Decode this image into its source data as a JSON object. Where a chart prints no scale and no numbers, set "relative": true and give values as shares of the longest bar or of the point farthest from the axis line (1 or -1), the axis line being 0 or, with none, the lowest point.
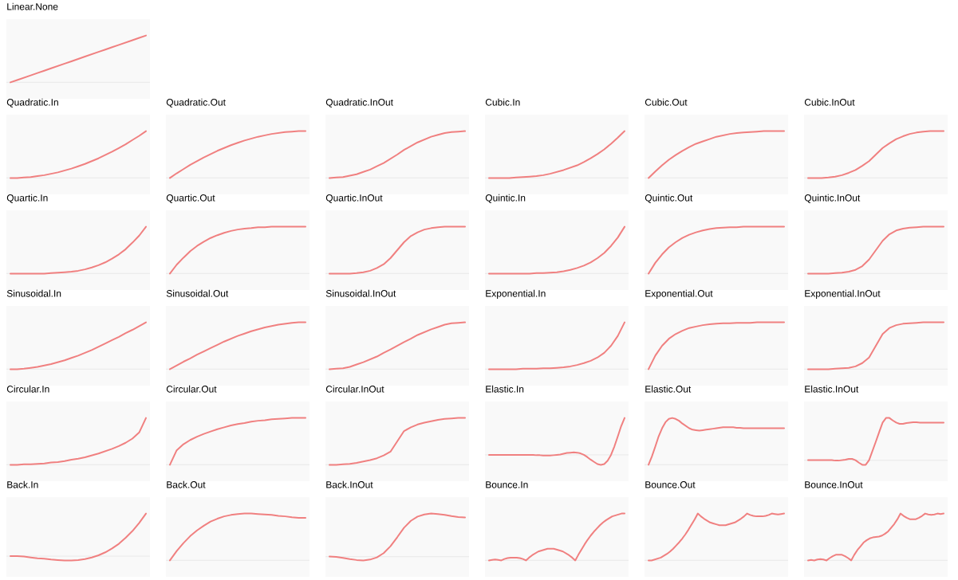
{
  "chart_data": [
    {
      "type": "line",
      "title": "Linear.None",
      "color": "#f08080",
      "relative": true,
      "categories": [
        null,
        null,
        null,
        null,
        null,
        null,
        null,
        null,
        null,
        null,
        null,
        null,
        null,
        null,
        null,
        null,
        null,
        null,
        null,
        null,
        null
      ],
      "values": [
        0,
        0.05,
        0.1,
        0.15,
        0.2,
        0.25,
        0.3,
        0.35,
        0.4,
        0.45,
        0.5,
        0.55,
        0.6,
        0.65,
        0.7,
        0.75,
        0.8,
        0.85,
        0.9,
        0.95,
        1
      ]
    },
    {
      "type": "line",
      "title": "Quadratic.In",
      "color": "#f08080",
      "relative": true,
      "categories": [
        null,
        null,
        null,
        null,
        null,
        null,
        null,
        null,
        null,
        null,
        null,
        null,
        null,
        null,
        null,
        null,
        null,
        null,
        null,
        null,
        null
      ],
      "values": [
        0,
        0,
        0.01,
        0.02,
        0.04,
        0.06,
        0.09,
        0.12,
        0.16,
        0.2,
        0.25,
        0.3,
        0.36,
        0.42,
        0.49,
        0.56,
        0.64,
        0.72,
        0.81,
        0.9,
        1
      ]
    },
    {
      "type": "line",
      "title": "Quadratic.Out",
      "color": "#f08080",
      "relative": true,
      "categories": [
        null,
        null,
        null,
        null,
        null,
        null,
        null,
        null,
        null,
        null,
        null,
        null,
        null,
        null,
        null,
        null,
        null,
        null,
        null,
        null,
        null
      ],
      "values": [
        0,
        0.1,
        0.19,
        0.28,
        0.36,
        0.44,
        0.51,
        0.58,
        0.64,
        0.7,
        0.75,
        0.8,
        0.84,
        0.88,
        0.91,
        0.94,
        0.96,
        0.98,
        0.99,
        1,
        1
      ]
    },
    {
      "type": "line",
      "title": "Quadratic.InOut",
      "color": "#f08080",
      "relative": true,
      "categories": [
        null,
        null,
        null,
        null,
        null,
        null,
        null,
        null,
        null,
        null,
        null,
        null,
        null,
        null,
        null,
        null,
        null,
        null,
        null,
        null,
        null
      ],
      "values": [
        0,
        0.01,
        0.02,
        0.05,
        0.08,
        0.13,
        0.18,
        0.25,
        0.32,
        0.41,
        0.5,
        0.6,
        0.68,
        0.76,
        0.82,
        0.88,
        0.92,
        0.96,
        0.98,
        0.99,
        1
      ]
    },
    {
      "type": "line",
      "title": "Cubic.In",
      "color": "#f08080",
      "relative": true,
      "categories": [
        null,
        null,
        null,
        null,
        null,
        null,
        null,
        null,
        null,
        null,
        null,
        null,
        null,
        null,
        null,
        null,
        null,
        null,
        null,
        null,
        null
      ],
      "values": [
        0,
        0,
        0,
        0,
        0.01,
        0.02,
        0.03,
        0.04,
        0.06,
        0.09,
        0.13,
        0.17,
        0.22,
        0.27,
        0.34,
        0.42,
        0.51,
        0.61,
        0.73,
        0.86,
        1
      ]
    },
    {
      "type": "line",
      "title": "Cubic.Out",
      "color": "#f08080",
      "relative": true,
      "categories": [
        null,
        null,
        null,
        null,
        null,
        null,
        null,
        null,
        null,
        null,
        null,
        null,
        null,
        null,
        null,
        null,
        null,
        null,
        null,
        null,
        null
      ],
      "values": [
        0,
        0.14,
        0.27,
        0.39,
        0.49,
        0.58,
        0.66,
        0.73,
        0.78,
        0.83,
        0.88,
        0.91,
        0.94,
        0.96,
        0.97,
        0.98,
        0.99,
        1,
        1,
        1,
        1
      ]
    },
    {
      "type": "line",
      "title": "Cubic.InOut",
      "color": "#f08080",
      "relative": true,
      "categories": [
        null,
        null,
        null,
        null,
        null,
        null,
        null,
        null,
        null,
        null,
        null,
        null,
        null,
        null,
        null,
        null,
        null,
        null,
        null,
        null,
        null
      ],
      "values": [
        0,
        0,
        0,
        0.01,
        0.03,
        0.06,
        0.11,
        0.17,
        0.26,
        0.36,
        0.5,
        0.64,
        0.74,
        0.83,
        0.89,
        0.94,
        0.97,
        0.99,
        1,
        1,
        1
      ]
    },
    {
      "type": "line",
      "title": "Quartic.In",
      "color": "#f08080",
      "relative": true,
      "categories": [
        null,
        null,
        null,
        null,
        null,
        null,
        null,
        null,
        null,
        null,
        null,
        null,
        null,
        null,
        null,
        null,
        null,
        null,
        null,
        null,
        null
      ],
      "values": [
        0,
        0,
        0,
        0,
        0,
        0,
        0.01,
        0.02,
        0.03,
        0.04,
        0.06,
        0.09,
        0.13,
        0.18,
        0.24,
        0.32,
        0.41,
        0.52,
        0.66,
        0.81,
        1
      ]
    },
    {
      "type": "line",
      "title": "Quartic.Out",
      "color": "#f08080",
      "relative": true,
      "categories": [
        null,
        null,
        null,
        null,
        null,
        null,
        null,
        null,
        null,
        null,
        null,
        null,
        null,
        null,
        null,
        null,
        null,
        null,
        null,
        null,
        null
      ],
      "values": [
        0,
        0.19,
        0.34,
        0.48,
        0.59,
        0.68,
        0.76,
        0.82,
        0.87,
        0.91,
        0.94,
        0.96,
        0.97,
        0.99,
        0.99,
        1,
        1,
        1,
        1,
        1,
        1
      ]
    },
    {
      "type": "line",
      "title": "Quartic.InOut",
      "color": "#f08080",
      "relative": true,
      "categories": [
        null,
        null,
        null,
        null,
        null,
        null,
        null,
        null,
        null,
        null,
        null,
        null,
        null,
        null,
        null,
        null,
        null,
        null,
        null,
        null,
        null
      ],
      "values": [
        0,
        0,
        0,
        0,
        0.01,
        0.03,
        0.06,
        0.12,
        0.2,
        0.33,
        0.5,
        0.67,
        0.8,
        0.88,
        0.94,
        0.97,
        0.99,
        1,
        1,
        1,
        1
      ]
    },
    {
      "type": "line",
      "title": "Quintic.In",
      "color": "#f08080",
      "relative": true,
      "categories": [
        null,
        null,
        null,
        null,
        null,
        null,
        null,
        null,
        null,
        null,
        null,
        null,
        null,
        null,
        null,
        null,
        null,
        null,
        null,
        null,
        null
      ],
      "values": [
        0,
        0,
        0,
        0,
        0,
        0,
        0,
        0.01,
        0.01,
        0.02,
        0.03,
        0.05,
        0.08,
        0.12,
        0.17,
        0.24,
        0.33,
        0.44,
        0.59,
        0.77,
        1
      ]
    },
    {
      "type": "line",
      "title": "Quintic.Out",
      "color": "#f08080",
      "relative": true,
      "categories": [
        null,
        null,
        null,
        null,
        null,
        null,
        null,
        null,
        null,
        null,
        null,
        null,
        null,
        null,
        null,
        null,
        null,
        null,
        null,
        null,
        null
      ],
      "values": [
        0,
        0.23,
        0.41,
        0.56,
        0.67,
        0.76,
        0.83,
        0.88,
        0.92,
        0.95,
        0.97,
        0.98,
        0.99,
        0.99,
        1,
        1,
        1,
        1,
        1,
        1,
        1
      ]
    },
    {
      "type": "line",
      "title": "Quintic.InOut",
      "color": "#f08080",
      "relative": true,
      "categories": [
        null,
        null,
        null,
        null,
        null,
        null,
        null,
        null,
        null,
        null,
        null,
        null,
        null,
        null,
        null,
        null,
        null,
        null,
        null,
        null,
        null
      ],
      "values": [
        0,
        0,
        0,
        0,
        0.01,
        0.02,
        0.04,
        0.08,
        0.16,
        0.3,
        0.5,
        0.7,
        0.84,
        0.92,
        0.96,
        0.98,
        0.99,
        1,
        1,
        1,
        1
      ]
    },
    {
      "type": "line",
      "title": "Sinusoidal.In",
      "color": "#f08080",
      "relative": true,
      "categories": [
        null,
        null,
        null,
        null,
        null,
        null,
        null,
        null,
        null,
        null,
        null,
        null,
        null,
        null,
        null,
        null,
        null,
        null,
        null,
        null,
        null
      ],
      "values": [
        0,
        0,
        0.01,
        0.03,
        0.05,
        0.08,
        0.11,
        0.15,
        0.19,
        0.24,
        0.29,
        0.35,
        0.41,
        0.48,
        0.55,
        0.62,
        0.69,
        0.77,
        0.84,
        0.92,
        1
      ]
    },
    {
      "type": "line",
      "title": "Sinusoidal.Out",
      "color": "#f08080",
      "relative": true,
      "categories": [
        null,
        null,
        null,
        null,
        null,
        null,
        null,
        null,
        null,
        null,
        null,
        null,
        null,
        null,
        null,
        null,
        null,
        null,
        null,
        null,
        null
      ],
      "values": [
        0,
        0.08,
        0.16,
        0.23,
        0.31,
        0.38,
        0.45,
        0.52,
        0.59,
        0.65,
        0.71,
        0.76,
        0.81,
        0.85,
        0.89,
        0.92,
        0.95,
        0.97,
        0.99,
        1,
        1
      ]
    },
    {
      "type": "line",
      "title": "Sinusoidal.InOut",
      "color": "#f08080",
      "relative": true,
      "categories": [
        null,
        null,
        null,
        null,
        null,
        null,
        null,
        null,
        null,
        null,
        null,
        null,
        null,
        null,
        null,
        null,
        null,
        null,
        null,
        null,
        null
      ],
      "values": [
        0,
        0.01,
        0.02,
        0.05,
        0.1,
        0.15,
        0.21,
        0.27,
        0.35,
        0.42,
        0.5,
        0.58,
        0.65,
        0.73,
        0.79,
        0.85,
        0.9,
        0.95,
        0.98,
        0.99,
        1
      ]
    },
    {
      "type": "line",
      "title": "Exponential.In",
      "color": "#f08080",
      "relative": true,
      "categories": [
        null,
        null,
        null,
        null,
        null,
        null,
        null,
        null,
        null,
        null,
        null,
        null,
        null,
        null,
        null,
        null,
        null,
        null,
        null,
        null,
        null
      ],
      "values": [
        0,
        0,
        0,
        0,
        0,
        0.01,
        0.01,
        0.01,
        0.02,
        0.02,
        0.03,
        0.04,
        0.06,
        0.09,
        0.13,
        0.18,
        0.25,
        0.35,
        0.5,
        0.71,
        1
      ]
    },
    {
      "type": "line",
      "title": "Exponential.Out",
      "color": "#f08080",
      "relative": true,
      "categories": [
        null,
        null,
        null,
        null,
        null,
        null,
        null,
        null,
        null,
        null,
        null,
        null,
        null,
        null,
        null,
        null,
        null,
        null,
        null,
        null,
        null
      ],
      "values": [
        0,
        0.29,
        0.5,
        0.65,
        0.75,
        0.82,
        0.88,
        0.91,
        0.94,
        0.96,
        0.97,
        0.98,
        0.98,
        0.99,
        0.99,
        0.99,
        1,
        1,
        1,
        1,
        1
      ]
    },
    {
      "type": "line",
      "title": "Exponential.InOut",
      "color": "#f08080",
      "relative": true,
      "categories": [
        null,
        null,
        null,
        null,
        null,
        null,
        null,
        null,
        null,
        null,
        null,
        null,
        null,
        null,
        null,
        null,
        null,
        null,
        null,
        null,
        null
      ],
      "values": [
        0,
        0,
        0,
        0,
        0.01,
        0.02,
        0.03,
        0.06,
        0.13,
        0.25,
        0.5,
        0.75,
        0.88,
        0.94,
        0.97,
        0.98,
        0.99,
        1,
        1,
        1,
        1
      ]
    },
    {
      "type": "line",
      "title": "Circular.In",
      "color": "#f08080",
      "relative": true,
      "categories": [
        null,
        null,
        null,
        null,
        null,
        null,
        null,
        null,
        null,
        null,
        null,
        null,
        null,
        null,
        null,
        null,
        null,
        null,
        null,
        null,
        null
      ],
      "values": [
        0,
        0,
        0.01,
        0.01,
        0.02,
        0.03,
        0.05,
        0.06,
        0.08,
        0.11,
        0.13,
        0.16,
        0.2,
        0.24,
        0.29,
        0.34,
        0.4,
        0.47,
        0.56,
        0.69,
        1
      ]
    },
    {
      "type": "line",
      "title": "Circular.Out",
      "color": "#f08080",
      "relative": true,
      "categories": [
        null,
        null,
        null,
        null,
        null,
        null,
        null,
        null,
        null,
        null,
        null,
        null,
        null,
        null,
        null,
        null,
        null,
        null,
        null,
        null,
        null
      ],
      "values": [
        0,
        0.31,
        0.44,
        0.53,
        0.6,
        0.66,
        0.71,
        0.76,
        0.8,
        0.84,
        0.87,
        0.89,
        0.92,
        0.94,
        0.95,
        0.97,
        0.98,
        0.99,
        1,
        1,
        1
      ]
    },
    {
      "type": "line",
      "title": "Circular.InOut",
      "color": "#f08080",
      "relative": true,
      "categories": [
        null,
        null,
        null,
        null,
        null,
        null,
        null,
        null,
        null,
        null,
        null,
        null,
        null,
        null,
        null,
        null,
        null,
        null,
        null,
        null,
        null
      ],
      "values": [
        0,
        0,
        0.01,
        0.02,
        0.04,
        0.07,
        0.1,
        0.14,
        0.2,
        0.28,
        0.5,
        0.72,
        0.8,
        0.86,
        0.9,
        0.93,
        0.96,
        0.98,
        0.99,
        1,
        1
      ]
    },
    {
      "type": "line",
      "title": "Elastic.In",
      "color": "#f08080",
      "relative": true,
      "categories": [
        null,
        null,
        null,
        null,
        null,
        null,
        null,
        null,
        null,
        null,
        null,
        null,
        null,
        null,
        null,
        null,
        null,
        null,
        null,
        null,
        null,
        null,
        null,
        null,
        null,
        null,
        null,
        null,
        null,
        null,
        null,
        null,
        null,
        null,
        null,
        null,
        null,
        null,
        null,
        null,
        null
      ],
      "values": [
        0,
        0,
        0,
        0,
        0,
        0,
        0,
        0,
        0,
        0,
        0,
        0,
        0,
        0,
        -0.01,
        -0.01,
        -0.02,
        -0.02,
        -0.02,
        -0.01,
        0,
        0.01,
        0.03,
        0.05,
        0.06,
        0.07,
        0.06,
        0.04,
        0,
        -0.06,
        -0.13,
        -0.19,
        -0.25,
        -0.27,
        -0.25,
        -0.16,
        0,
        0.23,
        0.5,
        0.78,
        1
      ]
    },
    {
      "type": "line",
      "title": "Elastic.Out",
      "color": "#f08080",
      "relative": true,
      "categories": [
        null,
        null,
        null,
        null,
        null,
        null,
        null,
        null,
        null,
        null,
        null,
        null,
        null,
        null,
        null,
        null,
        null,
        null,
        null,
        null,
        null,
        null,
        null,
        null,
        null,
        null,
        null,
        null,
        null,
        null,
        null,
        null,
        null,
        null,
        null,
        null,
        null,
        null,
        null,
        null,
        null
      ],
      "values": [
        0,
        0.18,
        0.39,
        0.61,
        0.78,
        0.91,
        0.98,
        1,
        0.98,
        0.94,
        0.88,
        0.83,
        0.78,
        0.75,
        0.74,
        0.73,
        0.74,
        0.75,
        0.76,
        0.77,
        0.78,
        0.79,
        0.8,
        0.8,
        0.8,
        0.8,
        0.79,
        0.79,
        0.78,
        0.78,
        0.78,
        0.78,
        0.78,
        0.78,
        0.78,
        0.78,
        0.78,
        0.78,
        0.78,
        0.78,
        0.78
      ]
    },
    {
      "type": "line",
      "title": "Elastic.InOut",
      "color": "#f08080",
      "relative": true,
      "categories": [
        null,
        null,
        null,
        null,
        null,
        null,
        null,
        null,
        null,
        null,
        null,
        null,
        null,
        null,
        null,
        null,
        null,
        null,
        null,
        null,
        null,
        null,
        null,
        null,
        null,
        null,
        null,
        null,
        null,
        null,
        null,
        null,
        null,
        null,
        null,
        null,
        null,
        null,
        null,
        null,
        null
      ],
      "values": [
        0,
        0,
        0,
        0,
        0,
        0,
        0,
        0,
        -0.01,
        -0.01,
        0,
        0.01,
        0.03,
        0.03,
        0,
        -0.06,
        -0.11,
        -0.11,
        0,
        0.22,
        0.44,
        0.67,
        0.89,
        1,
        1,
        0.94,
        0.89,
        0.86,
        0.86,
        0.88,
        0.89,
        0.9,
        0.9,
        0.89,
        0.89,
        0.89,
        0.89,
        0.89,
        0.89,
        0.89,
        0.89
      ]
    },
    {
      "type": "line",
      "title": "Back.In",
      "color": "#f08080",
      "relative": true,
      "categories": [
        null,
        null,
        null,
        null,
        null,
        null,
        null,
        null,
        null,
        null,
        null,
        null,
        null,
        null,
        null,
        null,
        null,
        null,
        null,
        null,
        null
      ],
      "values": [
        0,
        0,
        -0.01,
        -0.03,
        -0.05,
        -0.06,
        -0.08,
        -0.09,
        -0.1,
        -0.1,
        -0.09,
        -0.07,
        -0.03,
        0.02,
        0.09,
        0.18,
        0.29,
        0.43,
        0.59,
        0.78,
        1
      ]
    },
    {
      "type": "line",
      "title": "Back.Out",
      "color": "#f08080",
      "relative": true,
      "categories": [
        null,
        null,
        null,
        null,
        null,
        null,
        null,
        null,
        null,
        null,
        null,
        null,
        null,
        null,
        null,
        null,
        null,
        null,
        null,
        null,
        null
      ],
      "values": [
        0,
        0.2,
        0.37,
        0.52,
        0.64,
        0.74,
        0.83,
        0.89,
        0.94,
        0.97,
        0.99,
        1,
        1,
        0.99,
        0.98,
        0.97,
        0.95,
        0.94,
        0.92,
        0.91,
        0.91
      ]
    },
    {
      "type": "line",
      "title": "Back.InOut",
      "color": "#f08080",
      "relative": true,
      "categories": [
        null,
        null,
        null,
        null,
        null,
        null,
        null,
        null,
        null,
        null,
        null,
        null,
        null,
        null,
        null,
        null,
        null,
        null,
        null,
        null,
        null
      ],
      "values": [
        0,
        -0.01,
        -0.03,
        -0.06,
        -0.08,
        -0.09,
        -0.07,
        -0.02,
        0.08,
        0.24,
        0.45,
        0.67,
        0.83,
        0.93,
        0.98,
        1,
        0.99,
        0.97,
        0.94,
        0.92,
        0.91
      ]
    },
    {
      "type": "line",
      "title": "Bounce.In",
      "color": "#f08080",
      "relative": true,
      "categories": [
        null,
        null,
        null,
        null,
        null,
        null,
        null,
        null,
        null,
        null,
        null,
        null,
        null,
        null,
        null,
        null,
        null,
        null,
        null,
        null,
        null,
        null,
        null,
        null,
        null,
        null,
        null,
        null,
        null,
        null,
        null,
        null,
        null,
        null,
        null,
        null,
        null,
        null,
        null,
        null,
        null,
        null,
        null,
        null,
        null
      ],
      "values": [
        0,
        0.01,
        0.02,
        0.01,
        0,
        0.03,
        0.05,
        0.06,
        0.06,
        0.06,
        0.05,
        0.03,
        0,
        0.06,
        0.11,
        0.15,
        0.19,
        0.21,
        0.23,
        0.25,
        0.25,
        0.25,
        0.23,
        0.21,
        0.19,
        0.15,
        0.11,
        0.06,
        0,
        0.12,
        0.23,
        0.34,
        0.44,
        0.53,
        0.61,
        0.68,
        0.75,
        0.81,
        0.86,
        0.9,
        0.94,
        0.96,
        0.98,
        1,
        1
      ]
    },
    {
      "type": "line",
      "title": "Bounce.Out",
      "color": "#f08080",
      "relative": true,
      "categories": [
        null,
        null,
        null,
        null,
        null,
        null,
        null,
        null,
        null,
        null,
        null,
        null,
        null,
        null,
        null,
        null,
        null,
        null,
        null,
        null,
        null,
        null,
        null,
        null,
        null,
        null,
        null,
        null,
        null,
        null,
        null,
        null,
        null,
        null,
        null,
        null,
        null,
        null,
        null,
        null,
        null,
        null,
        null,
        null,
        null
      ],
      "values": [
        0,
        0,
        0.02,
        0.04,
        0.06,
        0.1,
        0.14,
        0.19,
        0.25,
        0.32,
        0.39,
        0.47,
        0.56,
        0.66,
        0.77,
        0.88,
        1,
        0.94,
        0.89,
        0.85,
        0.81,
        0.79,
        0.77,
        0.75,
        0.75,
        0.75,
        0.77,
        0.79,
        0.81,
        0.85,
        0.89,
        0.94,
        1,
        0.97,
        0.95,
        0.94,
        0.94,
        0.94,
        0.95,
        0.97,
        1,
        0.99,
        0.98,
        0.99,
        1
      ]
    },
    {
      "type": "line",
      "title": "Bounce.InOut",
      "color": "#f08080",
      "relative": true,
      "categories": [
        null,
        null,
        null,
        null,
        null,
        null,
        null,
        null,
        null,
        null,
        null,
        null,
        null,
        null,
        null,
        null,
        null,
        null,
        null,
        null,
        null,
        null,
        null,
        null,
        null,
        null,
        null,
        null,
        null,
        null,
        null,
        null,
        null,
        null,
        null,
        null,
        null,
        null,
        null,
        null,
        null,
        null,
        null,
        null,
        null
      ],
      "values": [
        0,
        0.01,
        0,
        0.02,
        0.03,
        0.02,
        0,
        0.05,
        0.09,
        0.12,
        0.12,
        0.12,
        0.09,
        0.05,
        0,
        0.12,
        0.22,
        0.3,
        0.38,
        0.43,
        0.47,
        0.49,
        0.5,
        0.51,
        0.53,
        0.57,
        0.62,
        0.7,
        0.78,
        0.88,
        1,
        0.95,
        0.91,
        0.88,
        0.88,
        0.88,
        0.91,
        0.95,
        1,
        0.98,
        0.97,
        0.98,
        1,
        0.99,
        1
      ]
    }
  ]
}
